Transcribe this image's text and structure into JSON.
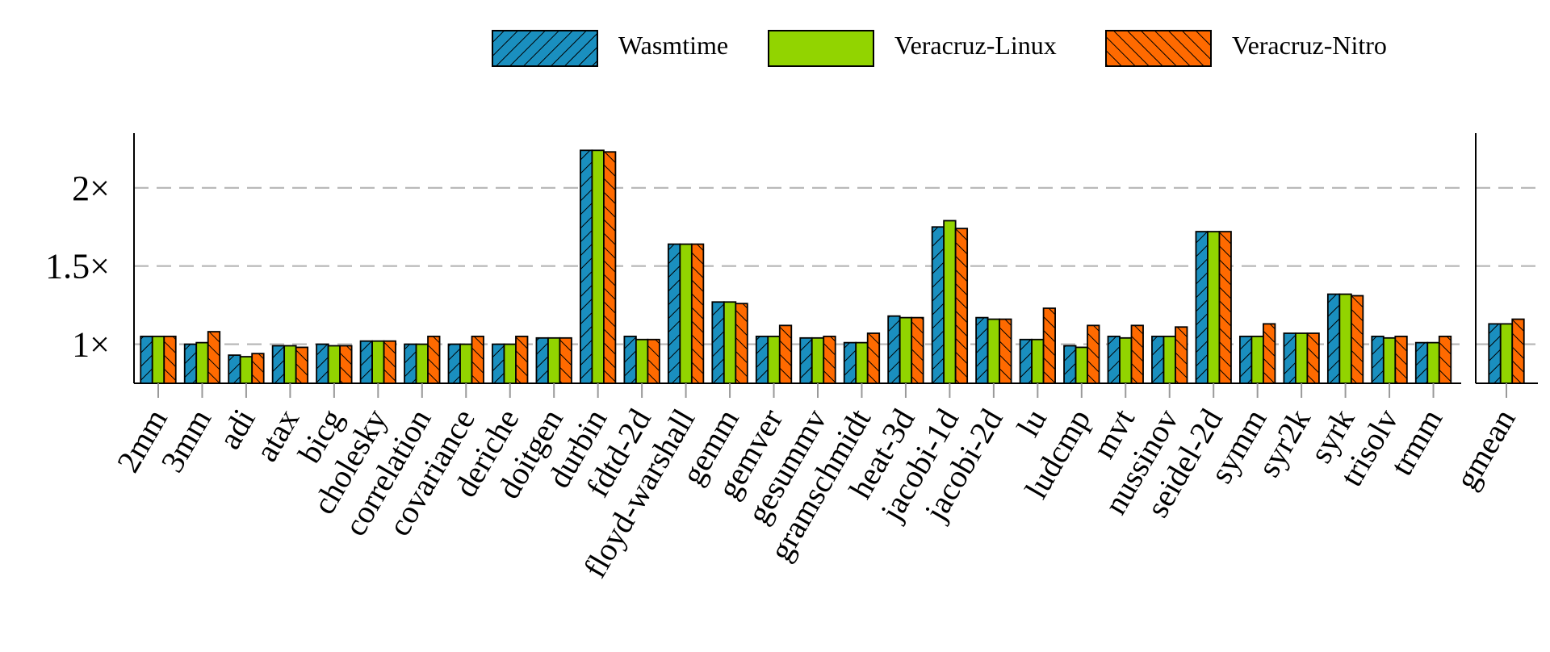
{
  "chart_data": {
    "type": "bar",
    "legend_position": "top-right",
    "grid": true,
    "ylim": [
      0.75,
      2.35
    ],
    "y_ticks": [
      {
        "value": 1,
        "label": "1×"
      },
      {
        "value": 1.5,
        "label": "1.5×"
      },
      {
        "value": 2,
        "label": "2×"
      }
    ],
    "categories": [
      "2mm",
      "3mm",
      "adi",
      "atax",
      "bicg",
      "cholesky",
      "correlation",
      "covariance",
      "deriche",
      "doitgen",
      "durbin",
      "fdtd-2d",
      "floyd-warshall",
      "gemm",
      "gemver",
      "gesummv",
      "gramschmidt",
      "heat-3d",
      "jacobi-1d",
      "jacobi-2d",
      "lu",
      "ludcmp",
      "mvt",
      "nussinov",
      "seidel-2d",
      "symm",
      "syr2k",
      "syrk",
      "trisolv",
      "trmm"
    ],
    "series": [
      {
        "name": "Wasmtime",
        "color": "#1a8fbf",
        "pattern": "hatch-forward",
        "values": [
          1.05,
          1.0,
          0.93,
          0.99,
          1.0,
          1.02,
          1.0,
          1.0,
          1.0,
          1.04,
          2.24,
          1.05,
          1.64,
          1.27,
          1.05,
          1.04,
          1.01,
          1.18,
          1.75,
          1.17,
          1.03,
          0.99,
          1.05,
          1.05,
          1.72,
          1.05,
          1.07,
          1.32,
          1.05,
          1.01
        ]
      },
      {
        "name": "Veracruz-Linux",
        "color": "#92d400",
        "pattern": "solid",
        "values": [
          1.05,
          1.01,
          0.92,
          0.99,
          0.99,
          1.02,
          1.0,
          1.0,
          1.0,
          1.04,
          2.24,
          1.03,
          1.64,
          1.27,
          1.05,
          1.04,
          1.01,
          1.17,
          1.79,
          1.16,
          1.03,
          0.98,
          1.04,
          1.05,
          1.72,
          1.05,
          1.07,
          1.32,
          1.04,
          1.01
        ]
      },
      {
        "name": "Veracruz-Nitro",
        "color": "#ff6a00",
        "pattern": "hatch-back",
        "values": [
          1.05,
          1.08,
          0.94,
          0.98,
          0.99,
          1.02,
          1.05,
          1.05,
          1.05,
          1.04,
          2.23,
          1.03,
          1.64,
          1.26,
          1.12,
          1.05,
          1.07,
          1.17,
          1.74,
          1.16,
          1.23,
          1.12,
          1.12,
          1.11,
          1.72,
          1.13,
          1.07,
          1.31,
          1.05,
          1.05
        ]
      }
    ],
    "summary_panel": {
      "category": "gmean",
      "values": [
        1.13,
        1.13,
        1.16
      ]
    }
  }
}
